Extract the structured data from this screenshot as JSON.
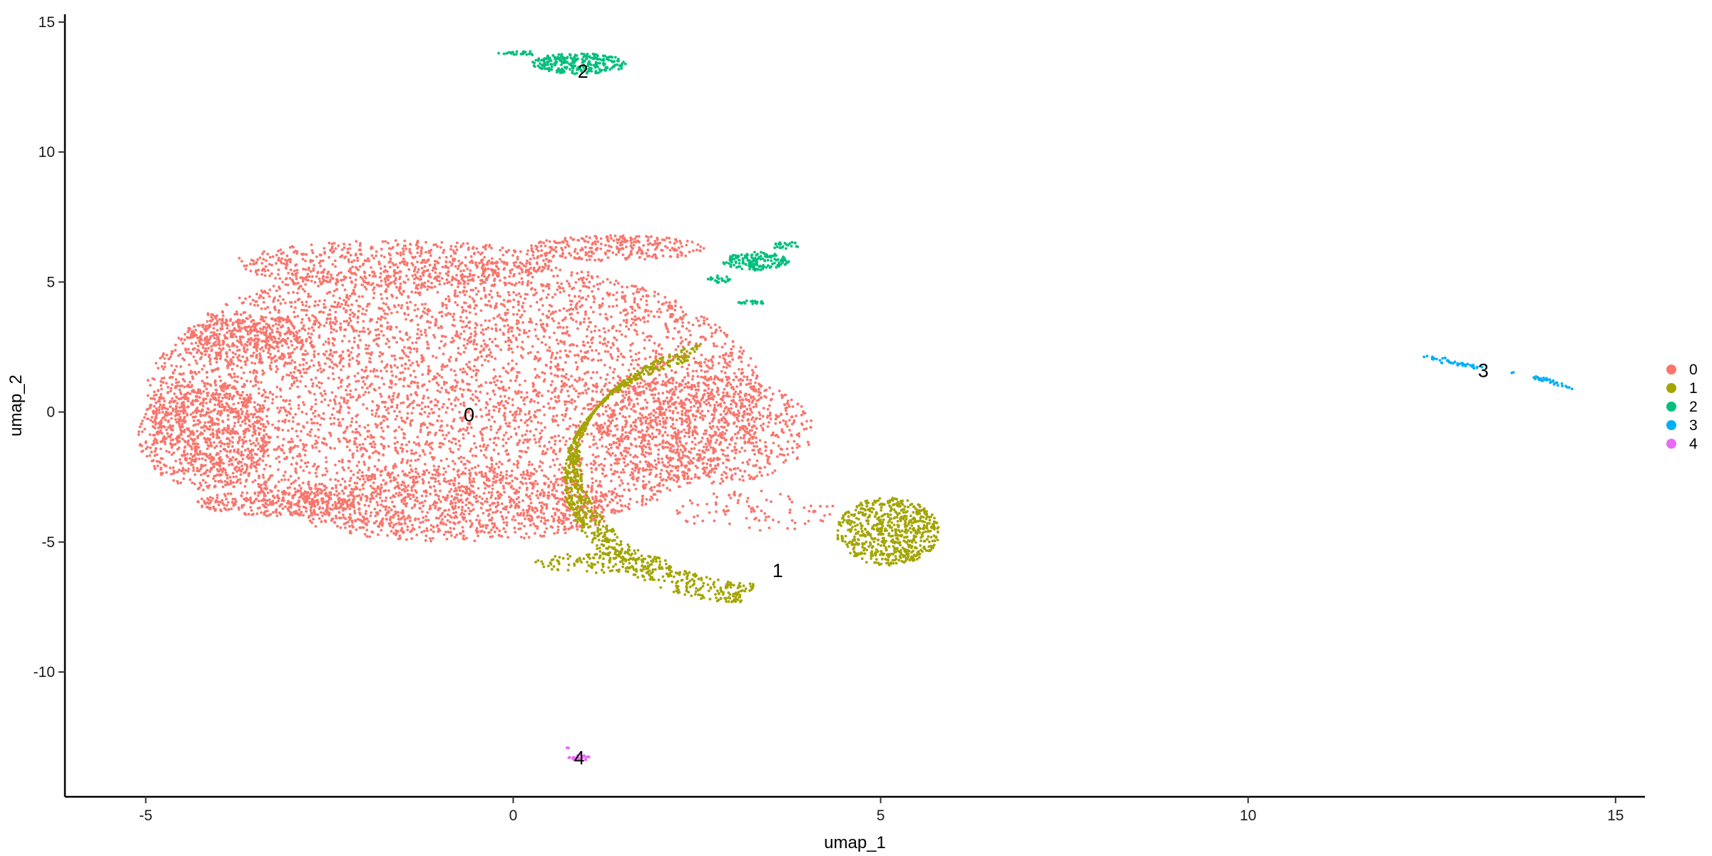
{
  "chart_data": {
    "type": "scatter",
    "title": "",
    "xlabel": "umap_1",
    "ylabel": "umap_2",
    "xlim": [
      -6.1,
      15.4
    ],
    "ylim": [
      -14.8,
      15.3
    ],
    "x_ticks": [
      -5,
      0,
      5,
      10,
      15
    ],
    "y_ticks": [
      -10,
      -5,
      0,
      5,
      10,
      15
    ],
    "grid": false,
    "legend_position": "right",
    "series": [
      {
        "name": "0",
        "color": "#F8766D",
        "label_at": [
          -0.6,
          -0.1
        ],
        "approx_points": 9000,
        "regions": [
          {
            "shape": "ellipse",
            "cx": -0.8,
            "cy": 0.6,
            "rx": 4.2,
            "ry": 5.3,
            "weight": 0.58
          },
          {
            "shape": "ellipse",
            "cx": -4.2,
            "cy": -0.9,
            "rx": 0.9,
            "ry": 2.1,
            "weight": 0.08
          },
          {
            "shape": "ellipse",
            "cx": -3.6,
            "cy": 2.8,
            "rx": 0.8,
            "ry": 1.0,
            "weight": 0.04
          },
          {
            "shape": "ellipse",
            "cx": 2.6,
            "cy": -0.7,
            "rx": 1.5,
            "ry": 2.1,
            "weight": 0.09
          },
          {
            "shape": "ellipse",
            "cx": -0.8,
            "cy": -3.6,
            "rx": 2.3,
            "ry": 1.4,
            "weight": 0.08
          },
          {
            "shape": "ellipse",
            "cx": -3.2,
            "cy": -3.5,
            "rx": 1.1,
            "ry": 0.5,
            "weight": 0.03
          },
          {
            "shape": "ellipse",
            "cx": -1.6,
            "cy": 5.7,
            "rx": 2.2,
            "ry": 0.9,
            "weight": 0.06
          },
          {
            "shape": "ellipse",
            "cx": 3.3,
            "cy": -3.8,
            "rx": 1.1,
            "ry": 0.8,
            "weight": 0.01
          },
          {
            "shape": "ellipse",
            "cx": 1.4,
            "cy": 6.3,
            "rx": 1.2,
            "ry": 0.5,
            "weight": 0.03
          }
        ]
      },
      {
        "name": "1",
        "color": "#A3A500",
        "label_at": [
          3.6,
          -6.1
        ],
        "approx_points": 1700,
        "regions": [
          {
            "shape": "arc",
            "cx": 3.4,
            "cy": -2.2,
            "rx": 2.6,
            "ry": 4.8,
            "a0": 1.65,
            "a1": 4.35,
            "thickness": 0.75,
            "weight": 0.55
          },
          {
            "shape": "ellipse",
            "cx": 5.1,
            "cy": -4.6,
            "rx": 0.7,
            "ry": 1.3,
            "weight": 0.38
          },
          {
            "shape": "ellipse",
            "cx": 1.2,
            "cy": -5.8,
            "rx": 0.9,
            "ry": 0.4,
            "weight": 0.07
          }
        ]
      },
      {
        "name": "2",
        "color": "#00BF7D",
        "label_at": [
          0.95,
          13.1
        ],
        "approx_points": 500,
        "regions": [
          {
            "shape": "ellipse",
            "cx": 0.9,
            "cy": 13.4,
            "rx": 0.65,
            "ry": 0.4,
            "weight": 0.52
          },
          {
            "shape": "ellipse",
            "cx": 0.1,
            "cy": 13.8,
            "rx": 0.3,
            "ry": 0.08,
            "weight": 0.05
          },
          {
            "shape": "ellipse",
            "cx": 3.3,
            "cy": 5.8,
            "rx": 0.45,
            "ry": 0.35,
            "weight": 0.3
          },
          {
            "shape": "ellipse",
            "cx": 3.7,
            "cy": 6.4,
            "rx": 0.2,
            "ry": 0.15,
            "weight": 0.05
          },
          {
            "shape": "ellipse",
            "cx": 3.25,
            "cy": 4.2,
            "rx": 0.2,
            "ry": 0.1,
            "weight": 0.04
          },
          {
            "shape": "ellipse",
            "cx": 2.8,
            "cy": 5.1,
            "rx": 0.15,
            "ry": 0.15,
            "weight": 0.04
          }
        ]
      },
      {
        "name": "3",
        "color": "#00B0F6",
        "label_at": [
          13.2,
          1.6
        ],
        "approx_points": 80,
        "regions": [
          {
            "shape": "line",
            "x0": 12.4,
            "y0": 2.15,
            "x1": 13.15,
            "y1": 1.7,
            "spread": 0.04,
            "weight": 0.55
          },
          {
            "shape": "line",
            "x0": 13.9,
            "y0": 1.35,
            "x1": 14.4,
            "y1": 0.95,
            "spread": 0.04,
            "weight": 0.42
          },
          {
            "shape": "ellipse",
            "cx": 13.6,
            "cy": 1.5,
            "rx": 0.03,
            "ry": 0.03,
            "weight": 0.03
          }
        ]
      },
      {
        "name": "4",
        "color": "#E76BF3",
        "label_at": [
          0.9,
          -13.3
        ],
        "approx_points": 30,
        "regions": [
          {
            "shape": "ellipse",
            "cx": 0.9,
            "cy": -13.3,
            "rx": 0.15,
            "ry": 0.1,
            "weight": 0.9
          },
          {
            "shape": "ellipse",
            "cx": 0.75,
            "cy": -12.9,
            "rx": 0.03,
            "ry": 0.03,
            "weight": 0.1
          }
        ]
      }
    ]
  }
}
